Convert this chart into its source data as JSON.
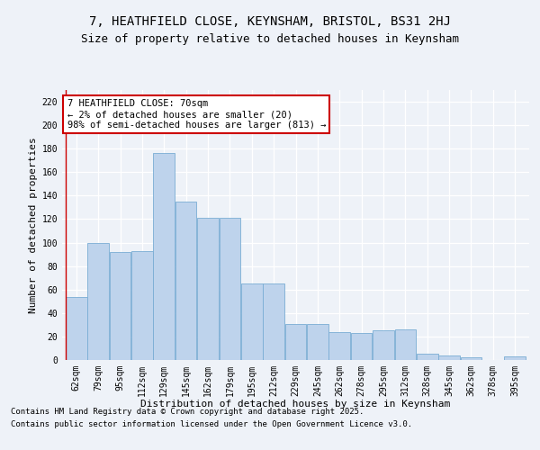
{
  "title": "7, HEATHFIELD CLOSE, KEYNSHAM, BRISTOL, BS31 2HJ",
  "subtitle": "Size of property relative to detached houses in Keynsham",
  "xlabel": "Distribution of detached houses by size in Keynsham",
  "ylabel": "Number of detached properties",
  "categories": [
    "62sqm",
    "79sqm",
    "95sqm",
    "112sqm",
    "129sqm",
    "145sqm",
    "162sqm",
    "179sqm",
    "195sqm",
    "212sqm",
    "229sqm",
    "245sqm",
    "262sqm",
    "278sqm",
    "295sqm",
    "312sqm",
    "328sqm",
    "345sqm",
    "362sqm",
    "378sqm",
    "395sqm"
  ],
  "values": [
    54,
    100,
    92,
    93,
    176,
    135,
    121,
    121,
    65,
    65,
    31,
    31,
    24,
    23,
    25,
    26,
    5,
    4,
    2,
    0,
    3
  ],
  "bar_color": "#bed3ec",
  "bar_edge_color": "#7aadd4",
  "annotation_box_color": "#ffffff",
  "annotation_border_color": "#cc0000",
  "annotation_text_line1": "7 HEATHFIELD CLOSE: 70sqm",
  "annotation_text_line2": "← 2% of detached houses are smaller (20)",
  "annotation_text_line3": "98% of semi-detached houses are larger (813) →",
  "red_line_index": 0.5,
  "ylim": [
    0,
    230
  ],
  "yticks": [
    0,
    20,
    40,
    60,
    80,
    100,
    120,
    140,
    160,
    180,
    200,
    220
  ],
  "footer_line1": "Contains HM Land Registry data © Crown copyright and database right 2025.",
  "footer_line2": "Contains public sector information licensed under the Open Government Licence v3.0.",
  "background_color": "#eef2f8",
  "grid_color": "#ffffff",
  "title_fontsize": 10,
  "subtitle_fontsize": 9,
  "axis_label_fontsize": 8,
  "tick_fontsize": 7,
  "annotation_fontsize": 7.5,
  "footer_fontsize": 6.5
}
